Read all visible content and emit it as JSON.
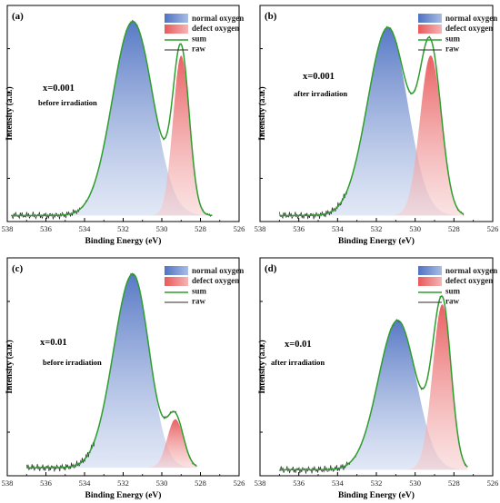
{
  "chart_data": [
    {
      "type": "area",
      "panel_label": "(a)",
      "annotations": [
        "x=0.001",
        "before irradiation"
      ],
      "xlabel": "Binding Energy (eV)",
      "ylabel": "Intensity (a.u.)",
      "x_reversed": true,
      "xlim": [
        538,
        526
      ],
      "xticks": [
        "538",
        "536",
        "534",
        "532",
        "530",
        "528",
        "526"
      ],
      "ylim": [
        0,
        1.08
      ],
      "legend_position": "top-right",
      "legend": [
        "normal oxygen",
        "defect oxygen",
        "sum",
        "raw"
      ],
      "colors": {
        "normal": "#6f8fcc",
        "defect": "#ec7f7f",
        "sum": "#2e9e2e",
        "raw": "#2a2a2a"
      },
      "data_range": [
        537.8,
        527.4
      ],
      "baseline": 0.03,
      "peaks": [
        {
          "name": "normal oxygen",
          "center": 531.5,
          "height": 0.97,
          "sigma_left": 1.05,
          "sigma_right": 1.05
        },
        {
          "name": "defect oxygen",
          "center": 529.0,
          "height": 0.8,
          "sigma_left": 0.42,
          "sigma_right": 0.42
        }
      ]
    },
    {
      "type": "area",
      "panel_label": "(b)",
      "annotations": [
        "x=0.001",
        "after irradiation"
      ],
      "xlabel": "Binding Energy (eV)",
      "ylabel": "Intensity (a.u.)",
      "x_reversed": true,
      "xlim": [
        538,
        526
      ],
      "xticks": [
        "538",
        "536",
        "534",
        "532",
        "530",
        "528",
        "526"
      ],
      "ylim": [
        0,
        1.08
      ],
      "legend_position": "top-right",
      "legend": [
        "normal oxygen",
        "defect oxygen",
        "sum",
        "raw"
      ],
      "colors": {
        "normal": "#6f8fcc",
        "defect": "#ec7f7f",
        "sum": "#2e9e2e",
        "raw": "#2a2a2a"
      },
      "data_range": [
        537.0,
        527.5
      ],
      "baseline": 0.03,
      "peaks": [
        {
          "name": "normal oxygen",
          "center": 531.4,
          "height": 0.94,
          "sigma_left": 1.05,
          "sigma_right": 1.0
        },
        {
          "name": "defect oxygen",
          "center": 529.2,
          "height": 0.8,
          "sigma_left": 0.55,
          "sigma_right": 0.55
        }
      ]
    },
    {
      "type": "area",
      "panel_label": "(c)",
      "annotations": [
        "x=0.01",
        "before irradiation"
      ],
      "xlabel": "Binding Energy (eV)",
      "ylabel": "Intensity (a.u.)",
      "x_reversed": true,
      "xlim": [
        538,
        526
      ],
      "xticks": [
        "538",
        "536",
        "534",
        "532",
        "530",
        "528",
        "526"
      ],
      "ylim": [
        0,
        1.08
      ],
      "legend_position": "top-right",
      "legend": [
        "normal oxygen",
        "defect oxygen",
        "sum",
        "raw"
      ],
      "colors": {
        "normal": "#6f8fcc",
        "defect": "#ec7f7f",
        "sum": "#2e9e2e",
        "raw": "#2a2a2a"
      },
      "data_range": [
        537.0,
        528.2
      ],
      "baseline": 0.04,
      "peaks": [
        {
          "name": "normal oxygen",
          "center": 531.5,
          "height": 0.96,
          "sigma_left": 1.0,
          "sigma_right": 0.85
        },
        {
          "name": "defect oxygen",
          "center": 529.3,
          "height": 0.24,
          "sigma_left": 0.42,
          "sigma_right": 0.42
        }
      ]
    },
    {
      "type": "area",
      "panel_label": "(d)",
      "annotations": [
        "x=0.01",
        "after irradiation"
      ],
      "xlabel": "Binding Energy (eV)",
      "ylabel": "Intensity (a.u.)",
      "x_reversed": true,
      "xlim": [
        538,
        526
      ],
      "xticks": [
        "538",
        "536",
        "534",
        "532",
        "530",
        "528",
        "526"
      ],
      "ylim": [
        0,
        1.08
      ],
      "legend_position": "top-right",
      "legend": [
        "normal oxygen",
        "defect oxygen",
        "sum",
        "raw"
      ],
      "colors": {
        "normal": "#6f8fcc",
        "defect": "#ec7f7f",
        "sum": "#2e9e2e",
        "raw": "#2a2a2a"
      },
      "data_range": [
        537.0,
        527.3
      ],
      "baseline": 0.03,
      "peaks": [
        {
          "name": "normal oxygen",
          "center": 530.9,
          "height": 0.74,
          "sigma_left": 1.0,
          "sigma_right": 0.95
        },
        {
          "name": "defect oxygen",
          "center": 528.6,
          "height": 0.82,
          "sigma_left": 0.5,
          "sigma_right": 0.45
        }
      ]
    }
  ]
}
